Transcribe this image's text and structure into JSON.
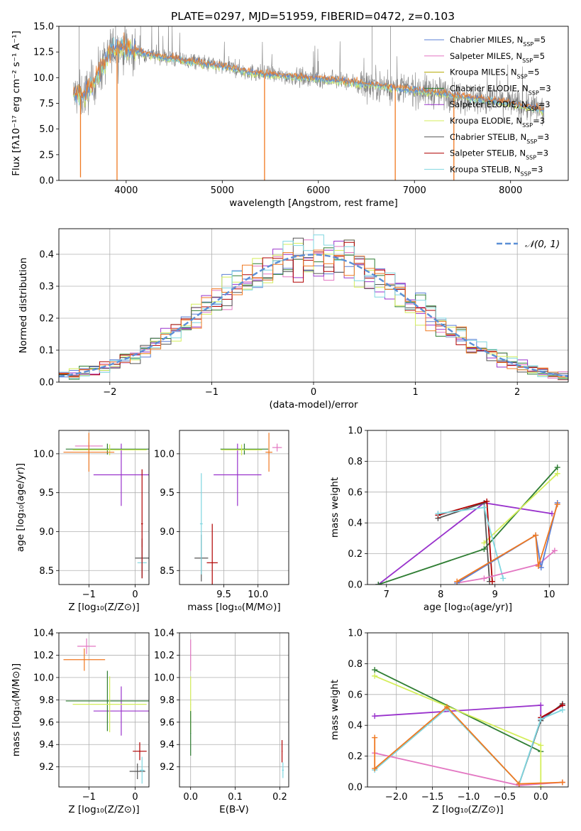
{
  "figure": {
    "title": "PLATE=0297, MJD=51959, FIBERID=0472, z=0.103"
  },
  "colors": {
    "Chabrier MILES": "#5b7fd6",
    "Salpeter MILES": "#e377c2",
    "Kroupa MILES": "#b5a800",
    "Chabrier ELODIE": "#2e7d32",
    "Salpeter ELODIE": "#9932cc",
    "Kroupa ELODIE": "#d4ee5a",
    "Chabrier STELIB": "#555555",
    "Salpeter STELIB": "#b00000",
    "Kroupa STELIB": "#7fd6e0",
    "data": "#808080",
    "orange": "#f07820",
    "gauss": "#5b8fd6",
    "grid": "#b0b0b0"
  },
  "legend_spectrum": [
    {
      "name": "Chabrier MILES",
      "n": "5"
    },
    {
      "name": "Salpeter MILES",
      "n": "5"
    },
    {
      "name": "Kroupa MILES",
      "n": "5"
    },
    {
      "name": "Chabrier ELODIE",
      "n": "3"
    },
    {
      "name": "Salpeter ELODIE",
      "n": "3"
    },
    {
      "name": "Kroupa ELODIE",
      "n": "3"
    },
    {
      "name": "Chabrier STELIB",
      "n": "3"
    },
    {
      "name": "Salpeter STELIB",
      "n": "3"
    },
    {
      "name": "Kroupa STELIB",
      "n": "3"
    }
  ],
  "legend_nssp_prefix": "N",
  "legend_nssp_sub": "SSP",
  "legend_gauss": "𝒩(0, 1)",
  "chart_data": [
    {
      "id": "spectrum",
      "type": "line",
      "xlabel": "wavelength [Angstrom, rest frame]",
      "ylabel": "Flux [fλ10⁻¹⁷ erg cm⁻² s⁻¹ A⁻¹]",
      "xlim": [
        3300,
        8600
      ],
      "ylim": [
        0,
        15
      ],
      "xticks": [
        4000,
        5000,
        6000,
        7000,
        8000
      ],
      "yticks": [
        0.0,
        2.5,
        5.0,
        7.5,
        10.0,
        12.5,
        15.0
      ],
      "continuum": {
        "x": [
          3450,
          3550,
          3650,
          3750,
          3850,
          3950,
          4050,
          4200,
          4500,
          4800,
          5000,
          5300,
          5600,
          6000,
          6400,
          6800,
          7200,
          7600,
          8000,
          8350
        ],
        "y": [
          8.4,
          8.2,
          9.3,
          11.0,
          12.8,
          13.0,
          12.7,
          12.3,
          11.8,
          11.4,
          11.1,
          10.5,
          10.2,
          9.9,
          9.5,
          9.0,
          8.6,
          8.0,
          7.5,
          6.8
        ]
      },
      "dips": [
        {
          "x": 3525,
          "y": 0.3
        },
        {
          "x": 3905,
          "y": 0.0
        },
        {
          "x": 5440,
          "y": 0.0
        },
        {
          "x": 6800,
          "y": 0.0
        },
        {
          "x": 7410,
          "y": 0.0
        }
      ]
    },
    {
      "id": "residuals",
      "type": "histogram",
      "xlabel": "(data-model)/error",
      "ylabel": "Normed distribution",
      "xlim": [
        -2.5,
        2.5
      ],
      "ylim": [
        0,
        0.48
      ],
      "xticks": [
        -2,
        -1,
        0,
        1,
        2
      ],
      "yticks": [
        0.0,
        0.1,
        0.2,
        0.3,
        0.4
      ],
      "bin_width": 0.1,
      "gaussian": {
        "mean": 0,
        "sigma": 1
      }
    },
    {
      "id": "age-vs-Z",
      "type": "scatter",
      "xlabel": "Z [log₁₀(Z/Z⊙)]",
      "ylabel": "age  [log₁₀(age/yr)]",
      "xlim": [
        -1.65,
        0.3
      ],
      "ylim": [
        8.32,
        10.3
      ],
      "xticks": [
        -1,
        0
      ],
      "yticks": [
        8.5,
        9.0,
        9.5,
        10.0
      ],
      "points": [
        {
          "series": "Salpeter ELODIE",
          "x": -0.3,
          "y": 9.73,
          "xerr": 0.6,
          "yerr": 0.4
        },
        {
          "series": "Chabrier STELIB",
          "x": 0.15,
          "y": 8.66,
          "xerr": 0.15,
          "yerr": 0.25
        },
        {
          "series": "Kroupa STELIB",
          "x": 0.15,
          "y": 8.6,
          "xerr": 0.1,
          "yerr": 0.2
        },
        {
          "series": "Salpeter STELIB",
          "x": 0.15,
          "y": 9.1,
          "xerr": 0.02,
          "yerr": 0.7
        },
        {
          "series": "Chabrier ELODIE",
          "x": -0.6,
          "y": 10.06,
          "xerr": 0.9,
          "yerr": 0.07
        },
        {
          "series": "Kroupa ELODIE",
          "x": -0.55,
          "y": 10.05,
          "xerr": 0.8,
          "yerr": 0.07
        },
        {
          "series": "Salpeter MILES",
          "x": -1.0,
          "y": 10.1,
          "xerr": 0.3,
          "yerr": 0.05
        },
        {
          "series": "orange",
          "x": -1.0,
          "y": 10.02,
          "xerr": 0.55,
          "yerr": 0.25
        }
      ]
    },
    {
      "id": "age-vs-mass",
      "type": "scatter",
      "xlabel": "mass [log₁₀(M/M⊙)]",
      "ylabel": "",
      "xlim": [
        8.85,
        10.45
      ],
      "ylim": [
        8.32,
        10.3
      ],
      "xticks": [
        9.5,
        10.0
      ],
      "yticks": [
        8.5,
        9.0,
        9.5,
        10.0
      ],
      "points": [
        {
          "series": "Salpeter ELODIE",
          "x": 9.7,
          "y": 9.73,
          "xerr": 0.35,
          "yerr": 0.4
        },
        {
          "series": "Chabrier STELIB",
          "x": 9.17,
          "y": 8.66,
          "xerr": 0.1,
          "yerr": 0.3
        },
        {
          "series": "Kroupa STELIB",
          "x": 9.17,
          "y": 9.1,
          "xerr": 0.02,
          "yerr": 0.65
        },
        {
          "series": "Salpeter STELIB",
          "x": 9.33,
          "y": 8.6,
          "xerr": 0.08,
          "yerr": 0.5
        },
        {
          "series": "Chabrier ELODIE",
          "x": 9.8,
          "y": 10.06,
          "xerr": 0.35,
          "yerr": 0.07
        },
        {
          "series": "Kroupa ELODIE",
          "x": 9.76,
          "y": 10.05,
          "xerr": 0.3,
          "yerr": 0.07
        },
        {
          "series": "Salpeter MILES",
          "x": 10.28,
          "y": 10.08,
          "xerr": 0.07,
          "yerr": 0.05
        },
        {
          "series": "orange",
          "x": 10.16,
          "y": 10.02,
          "xerr": 0.05,
          "yerr": 0.25
        }
      ]
    },
    {
      "id": "weight-vs-age",
      "type": "line",
      "xlabel": "age  [log₁₀(age/yr)]",
      "ylabel": "mass weight",
      "xlim": [
        6.65,
        10.35
      ],
      "ylim": [
        0,
        1.0
      ],
      "xticks": [
        7,
        8,
        9,
        10
      ],
      "yticks": [
        0.0,
        0.2,
        0.4,
        0.6,
        0.8,
        1.0
      ],
      "series": [
        {
          "name": "Salpeter ELODIE",
          "x": [
            6.85,
            8.8,
            10.05
          ],
          "y": [
            0.0,
            0.53,
            0.46
          ]
        },
        {
          "name": "Chabrier ELODIE",
          "x": [
            6.85,
            8.8,
            10.15
          ],
          "y": [
            0.0,
            0.23,
            0.76
          ]
        },
        {
          "name": "Kroupa ELODIE",
          "x": [
            8.8,
            10.15
          ],
          "y": [
            0.27,
            0.72
          ]
        },
        {
          "name": "Chabrier STELIB",
          "x": [
            7.95,
            8.8,
            8.9
          ],
          "y": [
            0.43,
            0.53,
            0.02
          ]
        },
        {
          "name": "Salpeter STELIB",
          "x": [
            7.95,
            8.85,
            8.95
          ],
          "y": [
            0.45,
            0.54,
            0.02
          ]
        },
        {
          "name": "Kroupa STELIB",
          "x": [
            7.95,
            8.8,
            9.15
          ],
          "y": [
            0.46,
            0.5,
            0.04
          ]
        },
        {
          "name": "Salpeter MILES",
          "x": [
            8.3,
            8.8,
            9.8,
            10.1
          ],
          "y": [
            0.01,
            0.04,
            0.13,
            0.22
          ]
        },
        {
          "name": "Chabrier MILES",
          "x": [
            8.3,
            9.75,
            9.85,
            10.15
          ],
          "y": [
            0.01,
            0.32,
            0.11,
            0.53
          ]
        },
        {
          "name": "orange",
          "x": [
            8.3,
            9.75,
            9.8,
            10.15
          ],
          "y": [
            0.02,
            0.32,
            0.12,
            0.52
          ]
        }
      ]
    },
    {
      "id": "mass-vs-Z",
      "type": "scatter",
      "xlabel": "Z [log₁₀(Z/Z⊙)]",
      "ylabel": "mass [log₁₀(M/M⊙)]",
      "xlim": [
        -1.65,
        0.3
      ],
      "ylim": [
        9.02,
        10.4
      ],
      "xticks": [
        -1,
        0
      ],
      "yticks": [
        9.2,
        9.4,
        9.6,
        9.8,
        10.0,
        10.2,
        10.4
      ],
      "points": [
        {
          "series": "Salpeter ELODIE",
          "x": -0.3,
          "y": 9.7,
          "xerr": 0.6,
          "yerr": 0.22
        },
        {
          "series": "Chabrier ELODIE",
          "x": -0.6,
          "y": 9.79,
          "xerr": 0.9,
          "yerr": 0.27
        },
        {
          "series": "Kroupa ELODIE",
          "x": -0.55,
          "y": 9.76,
          "xerr": 0.8,
          "yerr": 0.25
        },
        {
          "series": "Salpeter STELIB",
          "x": 0.1,
          "y": 9.34,
          "xerr": 0.15,
          "yerr": 0.08
        },
        {
          "series": "Chabrier STELIB",
          "x": 0.05,
          "y": 9.16,
          "xerr": 0.17,
          "yerr": 0.07
        },
        {
          "series": "Kroupa STELIB",
          "x": 0.15,
          "y": 9.17,
          "xerr": 0.05,
          "yerr": 0.12
        },
        {
          "series": "Salpeter MILES",
          "x": -1.05,
          "y": 10.28,
          "xerr": 0.2,
          "yerr": 0.07
        },
        {
          "series": "orange",
          "x": -1.1,
          "y": 10.16,
          "xerr": 0.45,
          "yerr": 0.1
        }
      ]
    },
    {
      "id": "mass-vs-EBV",
      "type": "scatter",
      "xlabel": "E(B-V)",
      "ylabel": "",
      "xlim": [
        -0.025,
        0.22
      ],
      "ylim": [
        9.02,
        10.4
      ],
      "xticks": [
        0.0,
        0.1,
        0.2
      ],
      "yticks": [
        9.2,
        9.4,
        9.6,
        9.8,
        10.0,
        10.2,
        10.4
      ],
      "points": [
        {
          "series": "Salpeter MILES",
          "x": 0.0,
          "y": 10.2,
          "xerr": 0.001,
          "yerr": 0.14
        },
        {
          "series": "Kroupa ELODIE",
          "x": 0.0,
          "y": 9.76,
          "xerr": 0.001,
          "yerr": 0.25
        },
        {
          "series": "Chabrier ELODIE",
          "x": 0.0,
          "y": 9.5,
          "xerr": 0.001,
          "yerr": 0.2
        },
        {
          "series": "Salpeter STELIB",
          "x": 0.205,
          "y": 9.34,
          "xerr": 0.001,
          "yerr": 0.1
        },
        {
          "series": "Kroupa STELIB",
          "x": 0.207,
          "y": 9.17,
          "xerr": 0.002,
          "yerr": 0.07
        }
      ]
    },
    {
      "id": "weight-vs-Z",
      "type": "line",
      "xlabel": "Z [log₁₀(Z/Z⊙)]",
      "ylabel": "mass weight",
      "xlim": [
        -2.4,
        0.38
      ],
      "ylim": [
        0,
        1.0
      ],
      "xticks": [
        -2.0,
        -1.5,
        -1.0,
        -0.5,
        0.0
      ],
      "yticks": [
        0.0,
        0.2,
        0.4,
        0.6,
        0.8,
        1.0
      ],
      "series": [
        {
          "name": "Salpeter ELODIE",
          "x": [
            -2.3,
            0.0,
            0.0,
            0.3
          ],
          "y": [
            0.46,
            0.53,
            0.44,
            0.53
          ]
        },
        {
          "name": "Chabrier ELODIE",
          "x": [
            -2.3,
            0.0
          ],
          "y": [
            0.76,
            0.23
          ]
        },
        {
          "name": "Kroupa ELODIE",
          "x": [
            -2.3,
            0.0,
            0.0
          ],
          "y": [
            0.72,
            0.27,
            0.0
          ]
        },
        {
          "name": "Chabrier STELIB",
          "x": [
            -0.3,
            0.0,
            0.3
          ],
          "y": [
            0.02,
            0.43,
            0.54
          ]
        },
        {
          "name": "Salpeter STELIB",
          "x": [
            0.0,
            0.3
          ],
          "y": [
            0.45,
            0.53
          ]
        },
        {
          "name": "Kroupa STELIB",
          "x": [
            -2.3,
            -1.3,
            -0.3,
            0.0,
            0.3
          ],
          "y": [
            0.11,
            0.51,
            0.02,
            0.44,
            0.5
          ]
        },
        {
          "name": "Salpeter MILES",
          "x": [
            -2.3,
            -0.3,
            0.3
          ],
          "y": [
            0.22,
            0.01,
            0.03
          ]
        },
        {
          "name": "orange",
          "x": [
            -2.3,
            -2.3,
            -1.3,
            -0.3,
            0.3
          ],
          "y": [
            0.32,
            0.12,
            0.52,
            0.02,
            0.03
          ]
        }
      ]
    }
  ]
}
